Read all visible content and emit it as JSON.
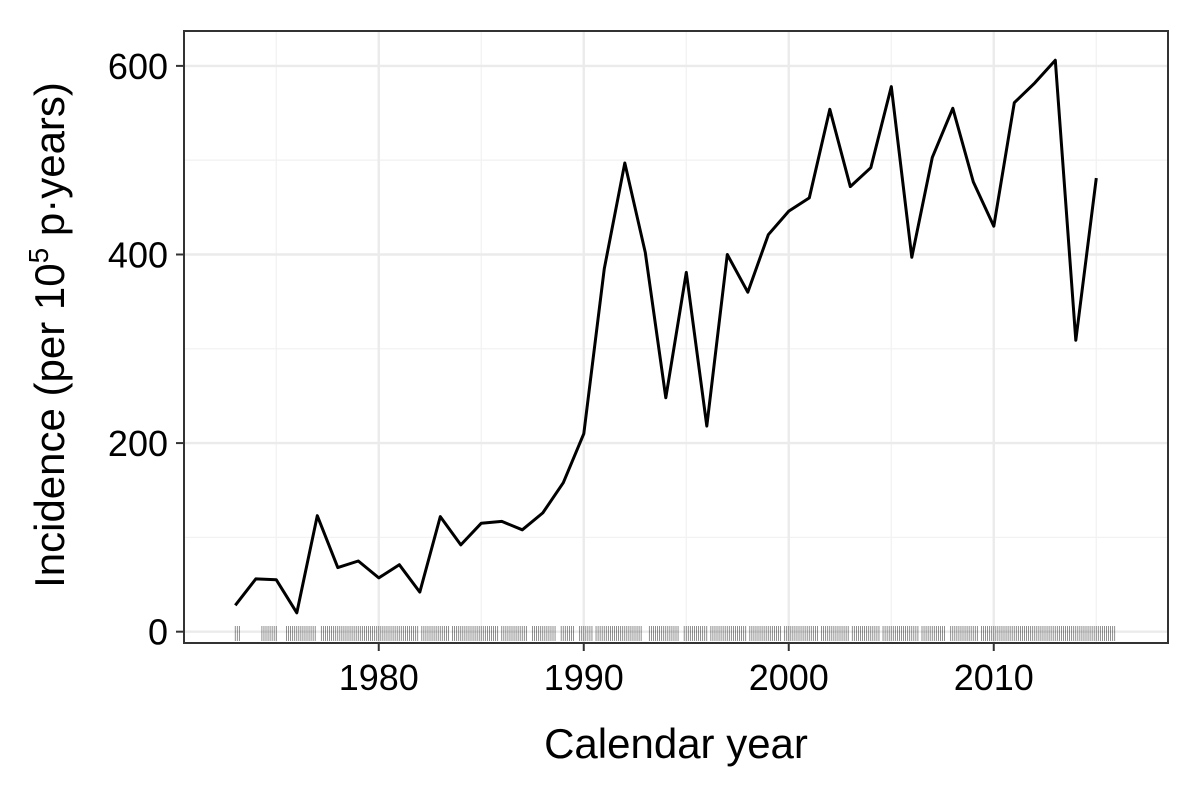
{
  "chart_data": {
    "type": "line",
    "title": "",
    "xlabel": "Calendar year",
    "ylabel_prefix": "Incidence (per 10",
    "ylabel_superscript": "5",
    "ylabel_suffix": " p·years)",
    "xlim": [
      1970.5,
      2018.5
    ],
    "ylim": [
      -12,
      637
    ],
    "x_ticks": [
      1980,
      1990,
      2000,
      2010
    ],
    "x_tick_labels": [
      "1980",
      "1990",
      "2000",
      "2010"
    ],
    "x_minor_ticks": [
      1975,
      1985,
      1995,
      2005,
      2015
    ],
    "y_ticks": [
      0,
      200,
      400,
      600
    ],
    "y_tick_labels": [
      "0",
      "200",
      "400",
      "600"
    ],
    "y_minor_ticks": [
      100,
      300,
      500
    ],
    "grid": true,
    "legend": "none",
    "series": [
      {
        "x": [
          1973,
          1974,
          1975,
          1976,
          1977,
          1978,
          1979,
          1980,
          1981,
          1982,
          1983,
          1984,
          1985,
          1986,
          1987,
          1988,
          1989,
          1990,
          1991,
          1992,
          1993,
          1994,
          1995,
          1996,
          1997,
          1998,
          1999,
          2000,
          2001,
          2002,
          2003,
          2004,
          2005,
          2006,
          2007,
          2008,
          2009,
          2010,
          2011,
          2012,
          2013,
          2014,
          2015
        ],
        "values": [
          28,
          56,
          55,
          20,
          123,
          68,
          75,
          57,
          71,
          42,
          122,
          92,
          115,
          117,
          108,
          126,
          158,
          210,
          385,
          497,
          402,
          248,
          381,
          218,
          400,
          360,
          421,
          446,
          460,
          554,
          472,
          492,
          578,
          397,
          503,
          555,
          477,
          430,
          561,
          582,
          606,
          309,
          481
        ]
      }
    ],
    "rug": {
      "segments": [
        [
          1973.0,
          1973.2
        ],
        [
          1974.3,
          1975.0
        ],
        [
          1975.5,
          1976.9
        ],
        [
          1977.2,
          1978.2
        ],
        [
          1978.3,
          1979.9
        ],
        [
          1980.0,
          1981.9
        ],
        [
          1982.1,
          1983.4
        ],
        [
          1983.6,
          1985.8
        ],
        [
          1986.0,
          1987.2
        ],
        [
          1987.5,
          1988.6
        ],
        [
          1988.9,
          1989.5
        ],
        [
          1989.8,
          1990.4
        ],
        [
          1990.6,
          1992.8
        ],
        [
          1993.2,
          1994.6
        ],
        [
          1994.9,
          1996.0
        ],
        [
          1996.2,
          1997.9
        ],
        [
          1998.1,
          1999.6
        ],
        [
          1999.8,
          2001.4
        ],
        [
          2001.6,
          2002.9
        ],
        [
          2003.1,
          2004.4
        ],
        [
          2004.6,
          2006.3
        ],
        [
          2006.5,
          2007.6
        ],
        [
          2007.9,
          2009.2
        ],
        [
          2009.4,
          2015.9
        ]
      ]
    }
  }
}
